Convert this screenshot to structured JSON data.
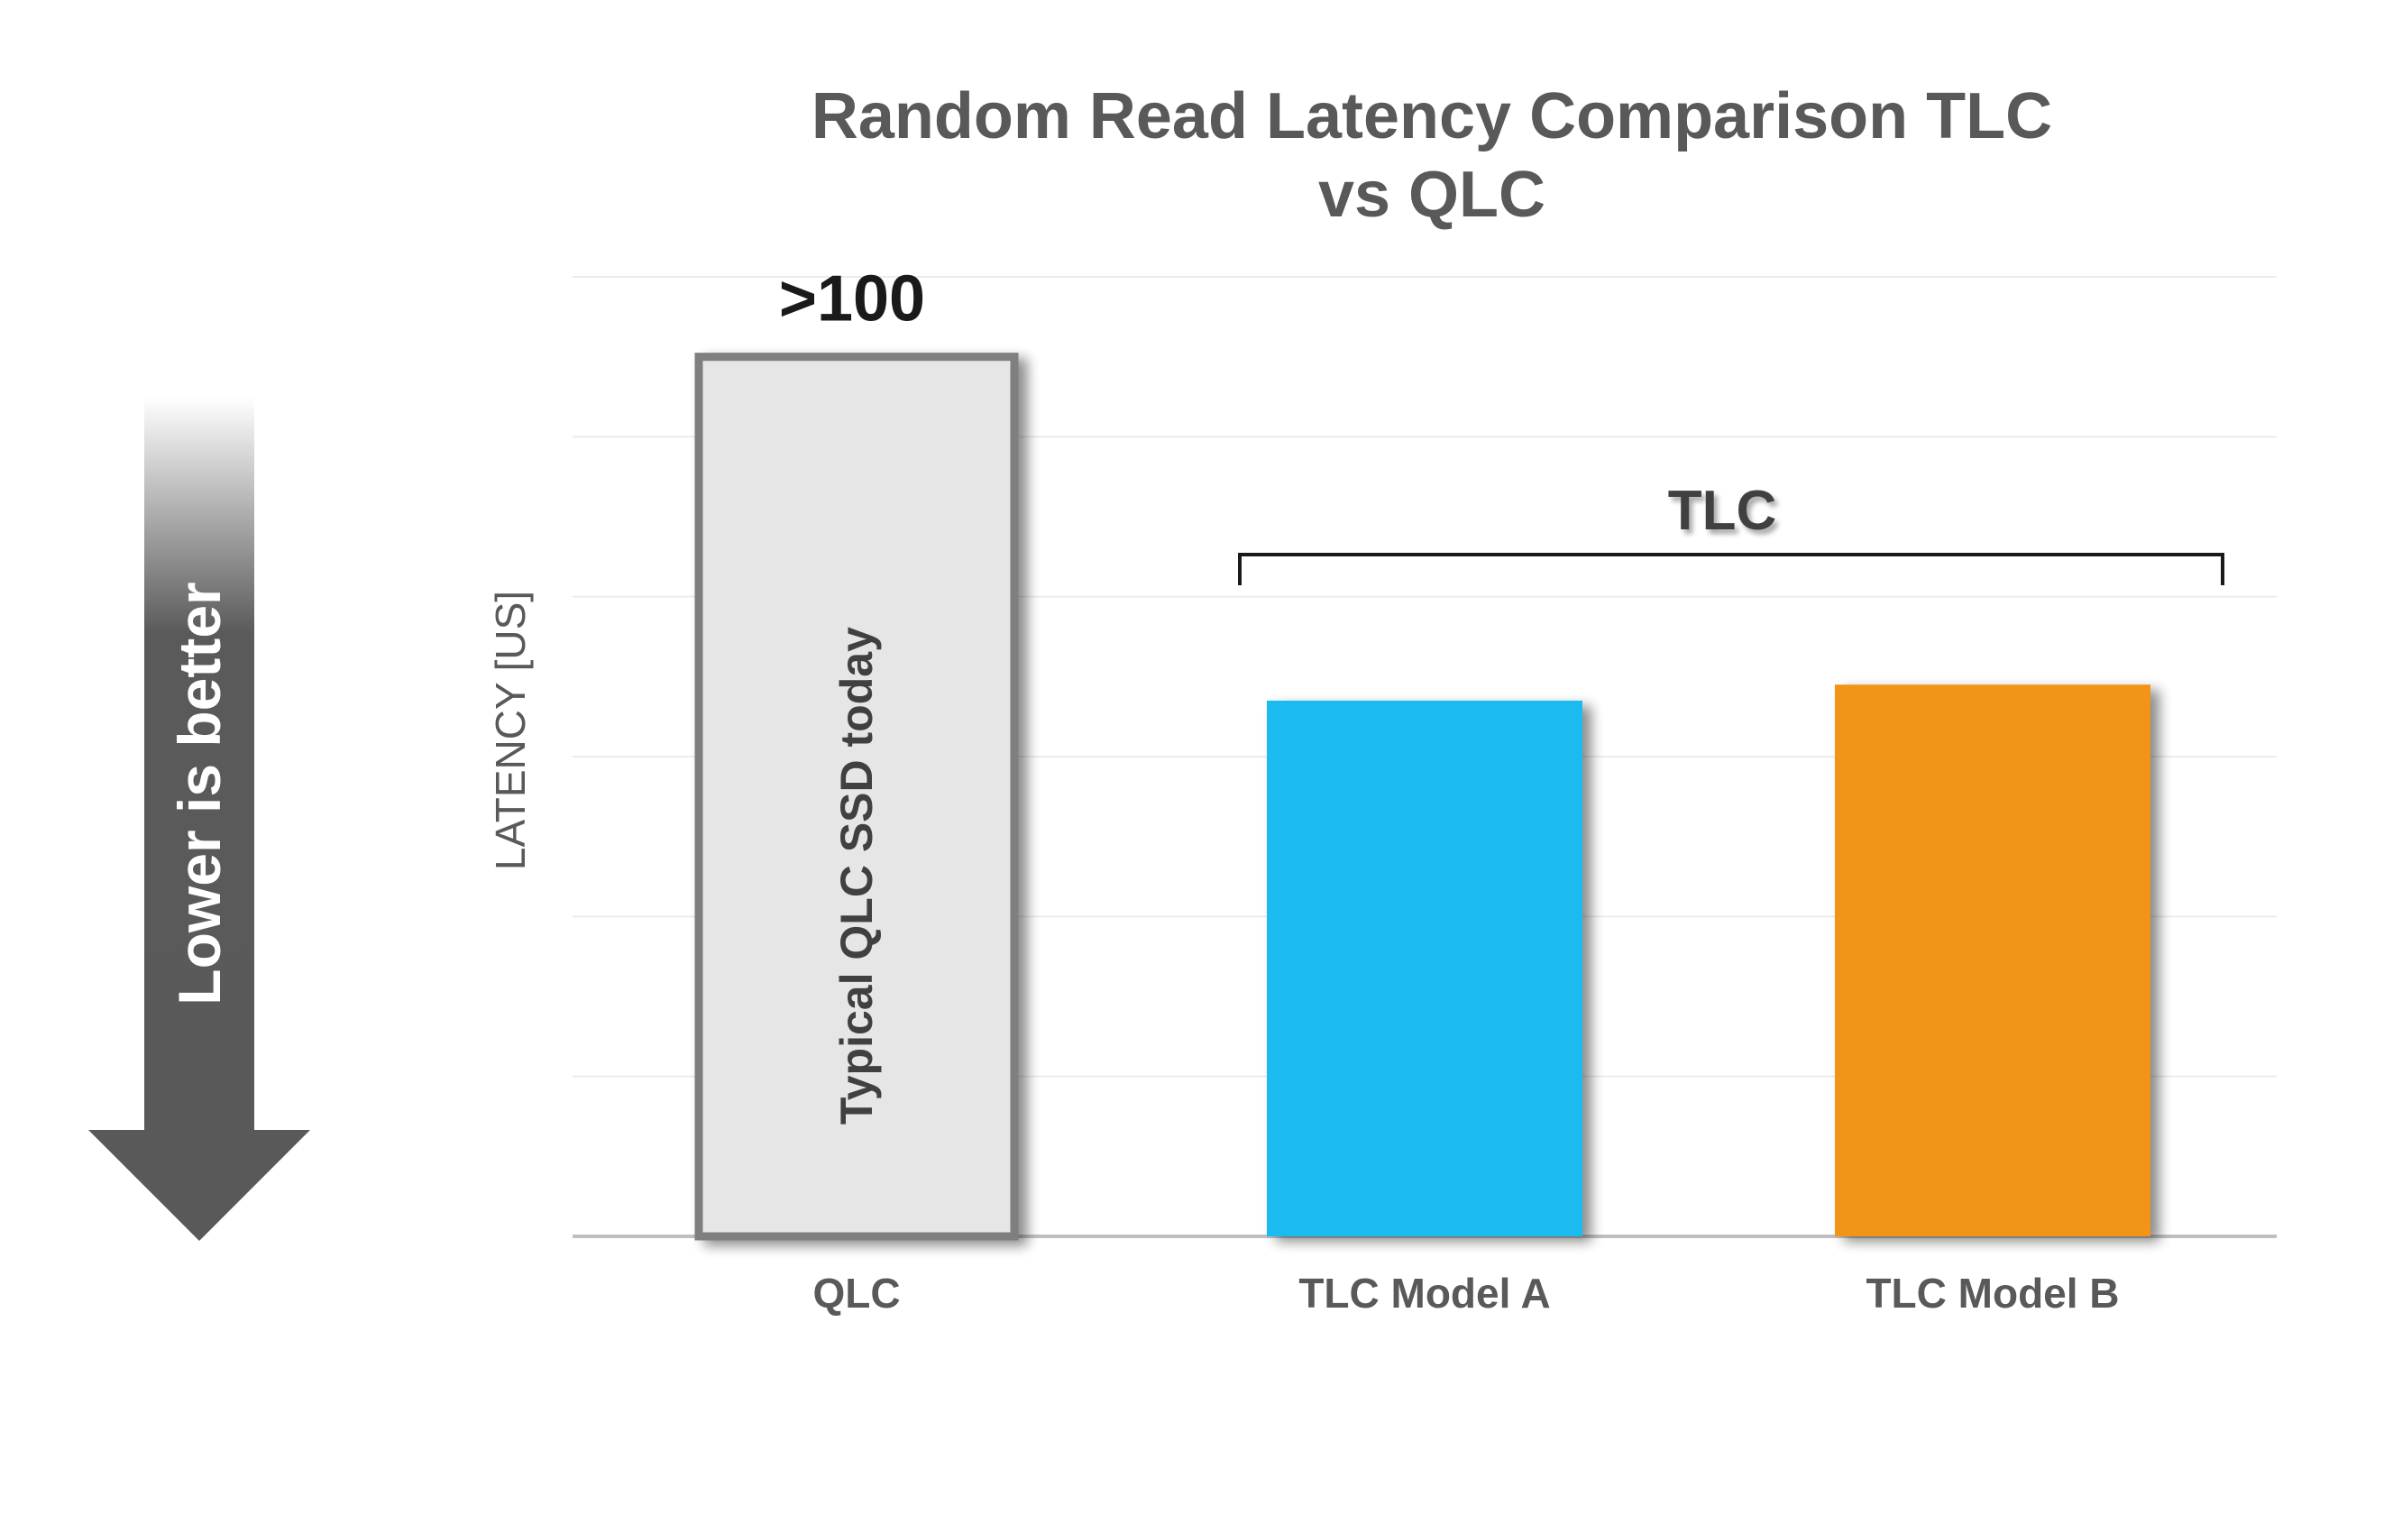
{
  "chart_data": {
    "type": "bar",
    "title_lines": [
      "Random Read Latency Comparison TLC",
      "vs QLC"
    ],
    "ylabel": "LATENCY [US]",
    "categories": [
      "QLC",
      "TLC Model A",
      "TLC Model B"
    ],
    "values": [
      110,
      67,
      69
    ],
    "ylim": [
      0,
      120
    ],
    "grid_step": 20,
    "grid": true,
    "colors": [
      "#e6e6e6",
      "#1cbbef",
      "#f29418"
    ],
    "qlc_border_color": "#7f7f7f",
    "data_labels": [
      ">100",
      "",
      ""
    ],
    "bar_inner_labels": [
      "Typical QLC SSD today",
      "",
      ""
    ],
    "group_bracket": {
      "label": "TLC",
      "categories": [
        "TLC Model A",
        "TLC Model B"
      ]
    },
    "side_arrow": {
      "label": "Lower is better",
      "direction": "down",
      "color": "#595959"
    }
  }
}
